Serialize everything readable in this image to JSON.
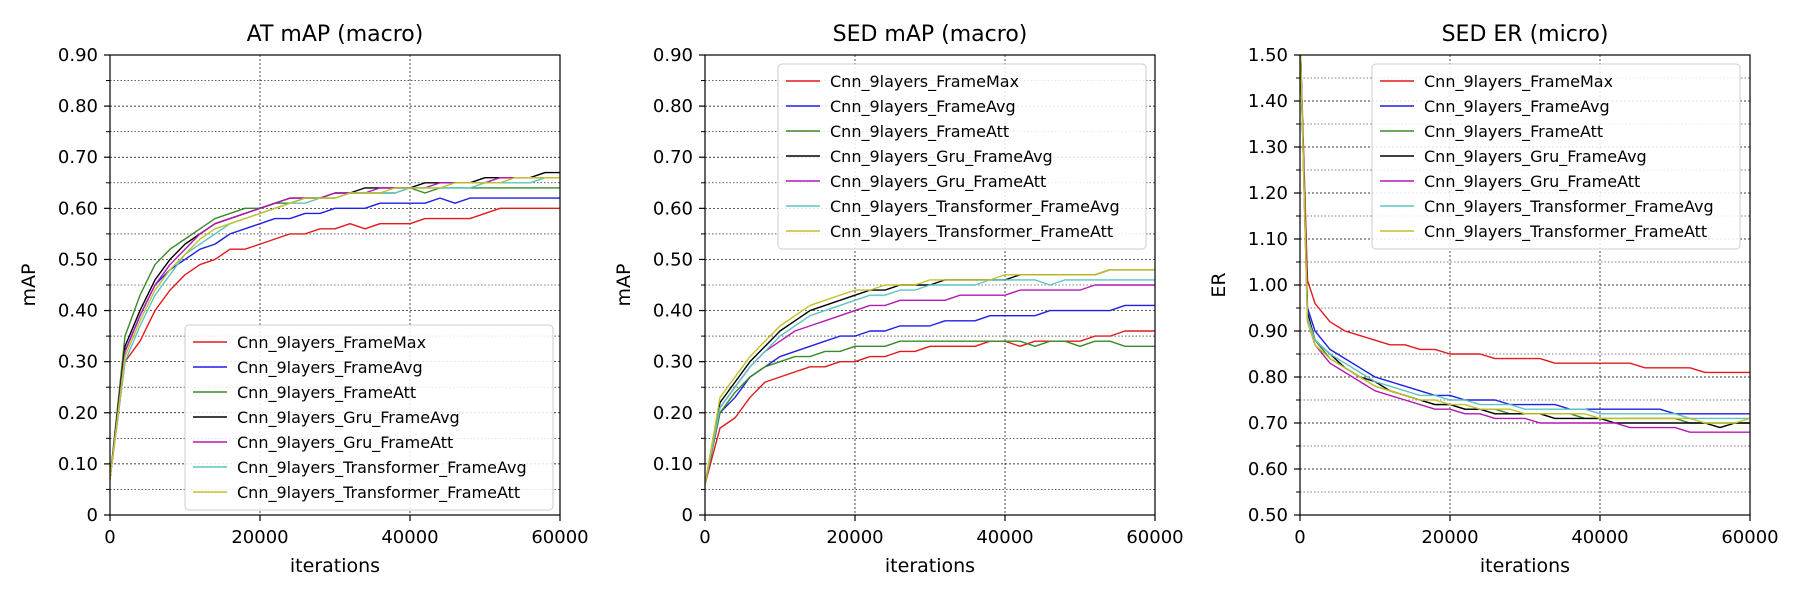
{
  "chart_data": [
    {
      "type": "line",
      "title": "AT mAP (macro)",
      "xlabel": "iterations",
      "ylabel": "mAP",
      "xlim": [
        0,
        60000
      ],
      "ylim": [
        0,
        0.9
      ],
      "xticks": [
        0,
        20000,
        40000,
        60000
      ],
      "xtick_labels": [
        "0",
        "20000",
        "40000",
        "60000"
      ],
      "yticks": [
        0,
        0.1,
        0.2,
        0.3,
        0.4,
        0.5,
        0.6,
        0.7,
        0.8,
        0.9
      ],
      "ytick_labels": [
        "0",
        "0.10",
        "0.20",
        "0.30",
        "0.40",
        "0.50",
        "0.60",
        "0.70",
        "0.80",
        "0.90"
      ],
      "grid": true,
      "legend_position": "lower-right",
      "x": [
        0,
        2000,
        4000,
        6000,
        8000,
        10000,
        12000,
        14000,
        16000,
        18000,
        20000,
        22000,
        24000,
        26000,
        28000,
        30000,
        32000,
        34000,
        36000,
        38000,
        40000,
        42000,
        44000,
        46000,
        48000,
        50000,
        52000,
        54000,
        56000,
        58000,
        60000
      ],
      "series": [
        {
          "name": "Cnn_9layers_FrameMax",
          "color": "#e31a1c",
          "values": [
            0.07,
            0.3,
            0.34,
            0.4,
            0.44,
            0.47,
            0.49,
            0.5,
            0.52,
            0.52,
            0.53,
            0.54,
            0.55,
            0.55,
            0.56,
            0.56,
            0.57,
            0.56,
            0.57,
            0.57,
            0.57,
            0.58,
            0.58,
            0.58,
            0.58,
            0.59,
            0.6,
            0.6,
            0.6,
            0.6,
            0.6
          ]
        },
        {
          "name": "Cnn_9layers_FrameAvg",
          "color": "#1f1fe6",
          "values": [
            0.07,
            0.32,
            0.39,
            0.45,
            0.48,
            0.5,
            0.52,
            0.53,
            0.55,
            0.56,
            0.57,
            0.58,
            0.58,
            0.59,
            0.59,
            0.6,
            0.6,
            0.6,
            0.61,
            0.61,
            0.61,
            0.61,
            0.62,
            0.61,
            0.62,
            0.62,
            0.62,
            0.62,
            0.62,
            0.62,
            0.62
          ]
        },
        {
          "name": "Cnn_9layers_FrameAtt",
          "color": "#3a8a2a",
          "values": [
            0.07,
            0.35,
            0.43,
            0.49,
            0.52,
            0.54,
            0.56,
            0.58,
            0.59,
            0.6,
            0.6,
            0.61,
            0.61,
            0.62,
            0.62,
            0.62,
            0.63,
            0.63,
            0.63,
            0.63,
            0.64,
            0.63,
            0.64,
            0.64,
            0.64,
            0.64,
            0.64,
            0.64,
            0.64,
            0.64,
            0.64
          ]
        },
        {
          "name": "Cnn_9layers_Gru_FrameAvg",
          "color": "#000000",
          "values": [
            0.07,
            0.33,
            0.4,
            0.46,
            0.5,
            0.53,
            0.55,
            0.57,
            0.58,
            0.59,
            0.6,
            0.61,
            0.62,
            0.62,
            0.62,
            0.63,
            0.63,
            0.64,
            0.64,
            0.64,
            0.64,
            0.65,
            0.65,
            0.65,
            0.65,
            0.66,
            0.66,
            0.66,
            0.66,
            0.67,
            0.67
          ]
        },
        {
          "name": "Cnn_9layers_Gru_FrameAtt",
          "color": "#b31ab3",
          "values": [
            0.07,
            0.32,
            0.39,
            0.45,
            0.49,
            0.52,
            0.55,
            0.57,
            0.58,
            0.59,
            0.6,
            0.61,
            0.62,
            0.62,
            0.62,
            0.63,
            0.63,
            0.63,
            0.64,
            0.64,
            0.64,
            0.64,
            0.65,
            0.65,
            0.65,
            0.65,
            0.66,
            0.66,
            0.66,
            0.66,
            0.66
          ]
        },
        {
          "name": "Cnn_9layers_Transformer_FrameAvg",
          "color": "#5fc4c4",
          "values": [
            0.07,
            0.3,
            0.37,
            0.43,
            0.47,
            0.51,
            0.53,
            0.55,
            0.57,
            0.58,
            0.59,
            0.6,
            0.61,
            0.61,
            0.62,
            0.62,
            0.63,
            0.63,
            0.63,
            0.63,
            0.64,
            0.64,
            0.64,
            0.64,
            0.64,
            0.65,
            0.65,
            0.65,
            0.65,
            0.66,
            0.66
          ]
        },
        {
          "name": "Cnn_9layers_Transformer_FrameAtt",
          "color": "#c2c22a",
          "values": [
            0.07,
            0.31,
            0.38,
            0.44,
            0.48,
            0.51,
            0.54,
            0.56,
            0.57,
            0.58,
            0.59,
            0.6,
            0.61,
            0.62,
            0.62,
            0.62,
            0.63,
            0.63,
            0.63,
            0.64,
            0.64,
            0.64,
            0.64,
            0.65,
            0.65,
            0.65,
            0.65,
            0.66,
            0.66,
            0.66,
            0.66
          ]
        }
      ]
    },
    {
      "type": "line",
      "title": "SED mAP (macro)",
      "xlabel": "iterations",
      "ylabel": "mAP",
      "xlim": [
        0,
        60000
      ],
      "ylim": [
        0,
        0.9
      ],
      "xticks": [
        0,
        20000,
        40000,
        60000
      ],
      "xtick_labels": [
        "0",
        "20000",
        "40000",
        "60000"
      ],
      "yticks": [
        0,
        0.1,
        0.2,
        0.3,
        0.4,
        0.5,
        0.6,
        0.7,
        0.8,
        0.9
      ],
      "ytick_labels": [
        "0",
        "0.10",
        "0.20",
        "0.30",
        "0.40",
        "0.50",
        "0.60",
        "0.70",
        "0.80",
        "0.90"
      ],
      "grid": true,
      "legend_position": "top-right",
      "x": [
        0,
        2000,
        4000,
        6000,
        8000,
        10000,
        12000,
        14000,
        16000,
        18000,
        20000,
        22000,
        24000,
        26000,
        28000,
        30000,
        32000,
        34000,
        36000,
        38000,
        40000,
        42000,
        44000,
        46000,
        48000,
        50000,
        52000,
        54000,
        56000,
        58000,
        60000
      ],
      "series": [
        {
          "name": "Cnn_9layers_FrameMax",
          "color": "#e31a1c",
          "values": [
            0.06,
            0.17,
            0.19,
            0.23,
            0.26,
            0.27,
            0.28,
            0.29,
            0.29,
            0.3,
            0.3,
            0.31,
            0.31,
            0.32,
            0.32,
            0.33,
            0.33,
            0.33,
            0.33,
            0.34,
            0.34,
            0.33,
            0.34,
            0.34,
            0.34,
            0.34,
            0.35,
            0.35,
            0.36,
            0.36,
            0.36
          ]
        },
        {
          "name": "Cnn_9layers_FrameAvg",
          "color": "#1f1fe6",
          "values": [
            0.06,
            0.2,
            0.23,
            0.27,
            0.29,
            0.31,
            0.32,
            0.33,
            0.34,
            0.35,
            0.35,
            0.36,
            0.36,
            0.37,
            0.37,
            0.37,
            0.38,
            0.38,
            0.38,
            0.39,
            0.39,
            0.39,
            0.39,
            0.4,
            0.4,
            0.4,
            0.4,
            0.4,
            0.41,
            0.41,
            0.41
          ]
        },
        {
          "name": "Cnn_9layers_FrameAtt",
          "color": "#3a8a2a",
          "values": [
            0.06,
            0.2,
            0.24,
            0.27,
            0.29,
            0.3,
            0.31,
            0.31,
            0.32,
            0.32,
            0.33,
            0.33,
            0.33,
            0.34,
            0.34,
            0.34,
            0.34,
            0.34,
            0.34,
            0.34,
            0.34,
            0.34,
            0.33,
            0.34,
            0.34,
            0.33,
            0.34,
            0.34,
            0.33,
            0.33,
            0.33
          ]
        },
        {
          "name": "Cnn_9layers_Gru_FrameAvg",
          "color": "#000000",
          "values": [
            0.06,
            0.22,
            0.26,
            0.3,
            0.33,
            0.36,
            0.38,
            0.4,
            0.41,
            0.42,
            0.43,
            0.44,
            0.44,
            0.45,
            0.45,
            0.45,
            0.46,
            0.46,
            0.46,
            0.46,
            0.46,
            0.47,
            0.47,
            0.47,
            0.47,
            0.47,
            0.47,
            0.48,
            0.48,
            0.48,
            0.48
          ]
        },
        {
          "name": "Cnn_9layers_Gru_FrameAtt",
          "color": "#b31ab3",
          "values": [
            0.06,
            0.21,
            0.25,
            0.29,
            0.32,
            0.34,
            0.36,
            0.37,
            0.38,
            0.39,
            0.4,
            0.41,
            0.41,
            0.42,
            0.42,
            0.42,
            0.42,
            0.43,
            0.43,
            0.43,
            0.43,
            0.44,
            0.44,
            0.44,
            0.44,
            0.44,
            0.45,
            0.45,
            0.45,
            0.45,
            0.45
          ]
        },
        {
          "name": "Cnn_9layers_Transformer_FrameAvg",
          "color": "#5fc4c4",
          "values": [
            0.06,
            0.21,
            0.25,
            0.29,
            0.32,
            0.35,
            0.37,
            0.39,
            0.4,
            0.41,
            0.42,
            0.43,
            0.43,
            0.44,
            0.44,
            0.45,
            0.45,
            0.45,
            0.45,
            0.46,
            0.46,
            0.46,
            0.46,
            0.45,
            0.46,
            0.46,
            0.46,
            0.46,
            0.46,
            0.46,
            0.46
          ]
        },
        {
          "name": "Cnn_9layers_Transformer_FrameAtt",
          "color": "#c2c22a",
          "values": [
            0.06,
            0.23,
            0.27,
            0.31,
            0.34,
            0.37,
            0.39,
            0.41,
            0.42,
            0.43,
            0.44,
            0.44,
            0.45,
            0.45,
            0.45,
            0.46,
            0.46,
            0.46,
            0.46,
            0.46,
            0.47,
            0.47,
            0.47,
            0.47,
            0.47,
            0.47,
            0.47,
            0.48,
            0.48,
            0.48,
            0.48
          ]
        }
      ]
    },
    {
      "type": "line",
      "title": "SED ER (micro)",
      "xlabel": "iterations",
      "ylabel": "ER",
      "xlim": [
        0,
        60000
      ],
      "ylim": [
        0.5,
        1.5
      ],
      "xticks": [
        0,
        20000,
        40000,
        60000
      ],
      "xtick_labels": [
        "0",
        "20000",
        "40000",
        "60000"
      ],
      "yticks": [
        0.5,
        0.6,
        0.7,
        0.8,
        0.9,
        1.0,
        1.1,
        1.2,
        1.3,
        1.4,
        1.5
      ],
      "ytick_labels": [
        "0.50",
        "0.60",
        "0.70",
        "0.80",
        "0.90",
        "1.00",
        "1.10",
        "1.20",
        "1.30",
        "1.40",
        "1.50"
      ],
      "grid": true,
      "legend_position": "top-right",
      "x": [
        0,
        1000,
        2000,
        4000,
        6000,
        8000,
        10000,
        12000,
        14000,
        16000,
        18000,
        20000,
        22000,
        24000,
        26000,
        28000,
        30000,
        32000,
        34000,
        36000,
        38000,
        40000,
        42000,
        44000,
        46000,
        48000,
        50000,
        52000,
        54000,
        56000,
        58000,
        60000
      ],
      "series": [
        {
          "name": "Cnn_9layers_FrameMax",
          "color": "#e31a1c",
          "values": [
            1.55,
            1.01,
            0.96,
            0.92,
            0.9,
            0.89,
            0.88,
            0.87,
            0.87,
            0.86,
            0.86,
            0.85,
            0.85,
            0.85,
            0.84,
            0.84,
            0.84,
            0.84,
            0.83,
            0.83,
            0.83,
            0.83,
            0.83,
            0.83,
            0.82,
            0.82,
            0.82,
            0.82,
            0.81,
            0.81,
            0.81,
            0.81
          ]
        },
        {
          "name": "Cnn_9layers_FrameAvg",
          "color": "#1f1fe6",
          "values": [
            1.55,
            0.95,
            0.9,
            0.86,
            0.84,
            0.82,
            0.8,
            0.79,
            0.78,
            0.77,
            0.76,
            0.76,
            0.75,
            0.75,
            0.75,
            0.74,
            0.74,
            0.74,
            0.74,
            0.73,
            0.73,
            0.73,
            0.73,
            0.73,
            0.73,
            0.73,
            0.72,
            0.72,
            0.72,
            0.72,
            0.72,
            0.72
          ]
        },
        {
          "name": "Cnn_9layers_FrameAtt",
          "color": "#3a8a2a",
          "values": [
            1.55,
            0.93,
            0.88,
            0.84,
            0.82,
            0.8,
            0.78,
            0.77,
            0.76,
            0.75,
            0.74,
            0.74,
            0.73,
            0.73,
            0.73,
            0.72,
            0.72,
            0.72,
            0.72,
            0.72,
            0.71,
            0.71,
            0.71,
            0.71,
            0.71,
            0.71,
            0.71,
            0.7,
            0.7,
            0.7,
            0.7,
            0.7
          ]
        },
        {
          "name": "Cnn_9layers_Gru_FrameAvg",
          "color": "#000000",
          "values": [
            1.55,
            0.94,
            0.88,
            0.85,
            0.82,
            0.8,
            0.79,
            0.77,
            0.76,
            0.75,
            0.74,
            0.74,
            0.73,
            0.73,
            0.72,
            0.72,
            0.72,
            0.72,
            0.71,
            0.71,
            0.71,
            0.71,
            0.7,
            0.7,
            0.7,
            0.7,
            0.7,
            0.7,
            0.7,
            0.69,
            0.7,
            0.7
          ]
        },
        {
          "name": "Cnn_9layers_Gru_FrameAtt",
          "color": "#b31ab3",
          "values": [
            1.55,
            0.92,
            0.87,
            0.83,
            0.81,
            0.79,
            0.77,
            0.76,
            0.75,
            0.74,
            0.73,
            0.73,
            0.72,
            0.72,
            0.71,
            0.71,
            0.71,
            0.7,
            0.7,
            0.7,
            0.7,
            0.7,
            0.7,
            0.69,
            0.69,
            0.69,
            0.69,
            0.68,
            0.68,
            0.68,
            0.68,
            0.68
          ]
        },
        {
          "name": "Cnn_9layers_Transformer_FrameAvg",
          "color": "#5fc4c4",
          "values": [
            1.55,
            0.93,
            0.88,
            0.85,
            0.83,
            0.81,
            0.79,
            0.78,
            0.77,
            0.76,
            0.76,
            0.75,
            0.75,
            0.74,
            0.74,
            0.74,
            0.73,
            0.73,
            0.73,
            0.73,
            0.73,
            0.72,
            0.72,
            0.72,
            0.72,
            0.72,
            0.72,
            0.71,
            0.71,
            0.71,
            0.71,
            0.71
          ]
        },
        {
          "name": "Cnn_9layers_Transformer_FrameAtt",
          "color": "#c2c22a",
          "values": [
            1.55,
            0.92,
            0.87,
            0.84,
            0.82,
            0.8,
            0.78,
            0.77,
            0.76,
            0.75,
            0.75,
            0.74,
            0.74,
            0.73,
            0.73,
            0.73,
            0.72,
            0.72,
            0.72,
            0.72,
            0.72,
            0.71,
            0.71,
            0.71,
            0.71,
            0.71,
            0.71,
            0.71,
            0.7,
            0.7,
            0.7,
            0.71
          ]
        }
      ]
    }
  ]
}
